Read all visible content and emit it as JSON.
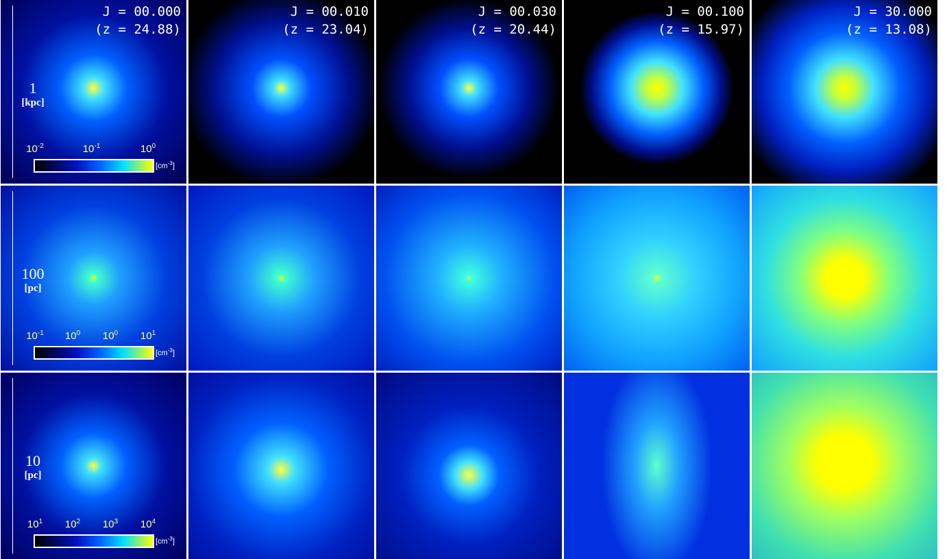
{
  "columns": [
    {
      "j": "J = 00.000",
      "z": "(z = 24.88)"
    },
    {
      "j": "J = 00.010",
      "z": "(z = 23.04)"
    },
    {
      "j": "J = 00.030",
      "z": "(z = 20.44)"
    },
    {
      "j": "J = 00.100",
      "z": "(z = 15.97)"
    },
    {
      "j": "J = 30.000",
      "z": "(z = 13.08)"
    }
  ],
  "rows": [
    {
      "scale": "1",
      "unit": "[kpc]",
      "ticks": [
        {
          "base": "10",
          "exp": "-2"
        },
        {
          "base": "10",
          "exp": "-1"
        },
        {
          "base": "10",
          "exp": "0"
        }
      ],
      "colorbar_unit": {
        "open": "[cm",
        "exp": "-3",
        "close": "]"
      }
    },
    {
      "scale": "100",
      "unit": "[pc]",
      "ticks": [
        {
          "base": "10",
          "exp": "-1"
        },
        {
          "base": "10",
          "exp": "0"
        },
        {
          "base": "10",
          "exp": "0"
        },
        {
          "base": "10",
          "exp": "1"
        }
      ],
      "colorbar_unit": {
        "open": "[cm",
        "exp": "-3",
        "close": "]"
      }
    },
    {
      "scale": "10",
      "unit": "[pc]",
      "ticks": [
        {
          "base": "10",
          "exp": "1"
        },
        {
          "base": "10",
          "exp": "2"
        },
        {
          "base": "10",
          "exp": "3"
        },
        {
          "base": "10",
          "exp": "4"
        }
      ],
      "colorbar_unit": {
        "open": "[cm",
        "exp": "-3",
        "close": "]"
      }
    }
  ]
}
